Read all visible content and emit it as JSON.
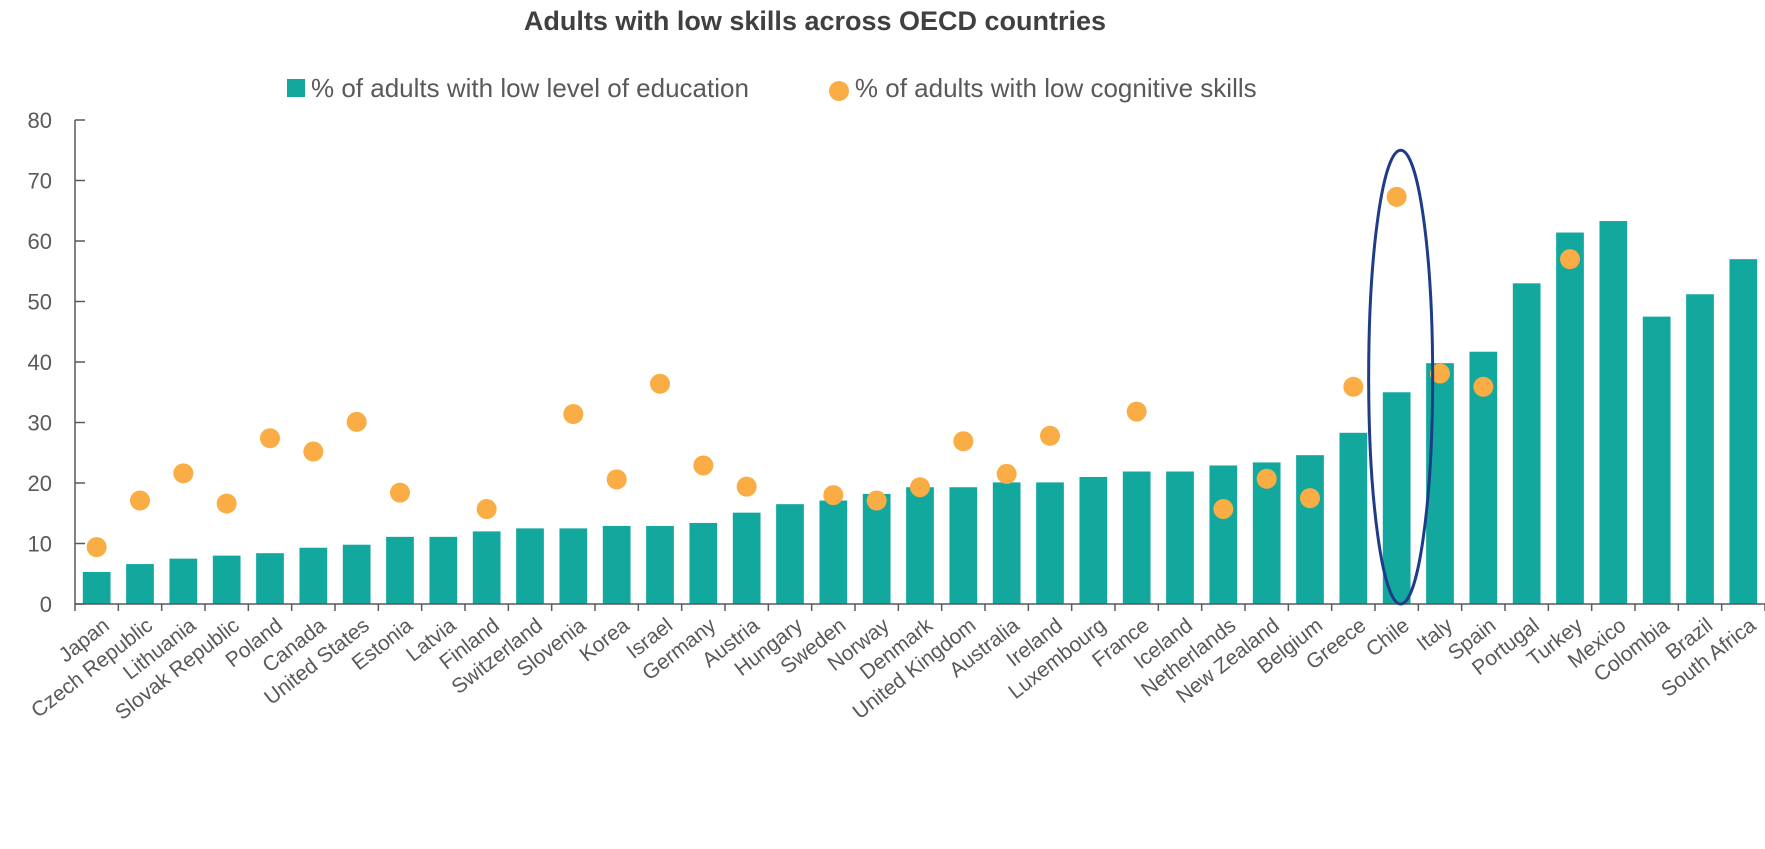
{
  "colors": {
    "bar": "#13a89e",
    "dot": "#f9ad44",
    "highlight": "#1f3c88",
    "axis": "#595959"
  },
  "chart_data": {
    "type": "bar",
    "title": "Adults with low skills across OECD countries",
    "ylim": [
      0,
      80
    ],
    "yticks": [
      0,
      10,
      20,
      30,
      40,
      50,
      60,
      70,
      80
    ],
    "legend_position": "top",
    "grid": false,
    "categories": [
      "Japan",
      "Czech Republic",
      "Lithuania",
      "Slovak Republic",
      "Poland",
      "Canada",
      "United States",
      "Estonia",
      "Latvia",
      "Finland",
      "Switzerland",
      "Slovenia",
      "Korea",
      "Israel",
      "Germany",
      "Austria",
      "Hungary",
      "Sweden",
      "Norway",
      "Denmark",
      "United Kingdom",
      "Australia",
      "Ireland",
      "Luxembourg",
      "France",
      "Iceland",
      "Netherlands",
      "New Zealand",
      "Belgium",
      "Greece",
      "Chile",
      "Italy",
      "Spain",
      "Portugal",
      "Turkey",
      "Mexico",
      "Colombia",
      "Brazil",
      "South Africa"
    ],
    "series": [
      {
        "name": "% of adults with low level of education",
        "kind": "bar",
        "values": [
          5.3,
          6.6,
          7.5,
          8.0,
          8.4,
          9.3,
          9.8,
          11.1,
          11.1,
          12.0,
          12.5,
          12.5,
          12.9,
          12.9,
          13.4,
          15.1,
          16.5,
          17.1,
          18.2,
          19.3,
          19.3,
          20.1,
          20.1,
          21.0,
          21.9,
          21.9,
          22.9,
          23.4,
          24.6,
          28.3,
          35.0,
          39.8,
          41.7,
          53.0,
          61.4,
          63.3,
          47.5,
          51.2,
          57.0
        ]
      },
      {
        "name": "% of adults with low cognitive skills",
        "kind": "dot",
        "values": [
          9.4,
          17.1,
          21.6,
          16.6,
          27.4,
          25.2,
          30.1,
          18.4,
          null,
          15.7,
          null,
          31.4,
          20.6,
          36.4,
          22.9,
          19.4,
          null,
          18.0,
          17.1,
          19.3,
          26.9,
          21.5,
          27.8,
          null,
          31.8,
          null,
          15.7,
          20.7,
          17.5,
          35.9,
          67.3,
          38.1,
          35.9,
          null,
          57.0,
          null,
          null,
          null,
          null
        ]
      }
    ],
    "highlight_category": "Chile"
  }
}
